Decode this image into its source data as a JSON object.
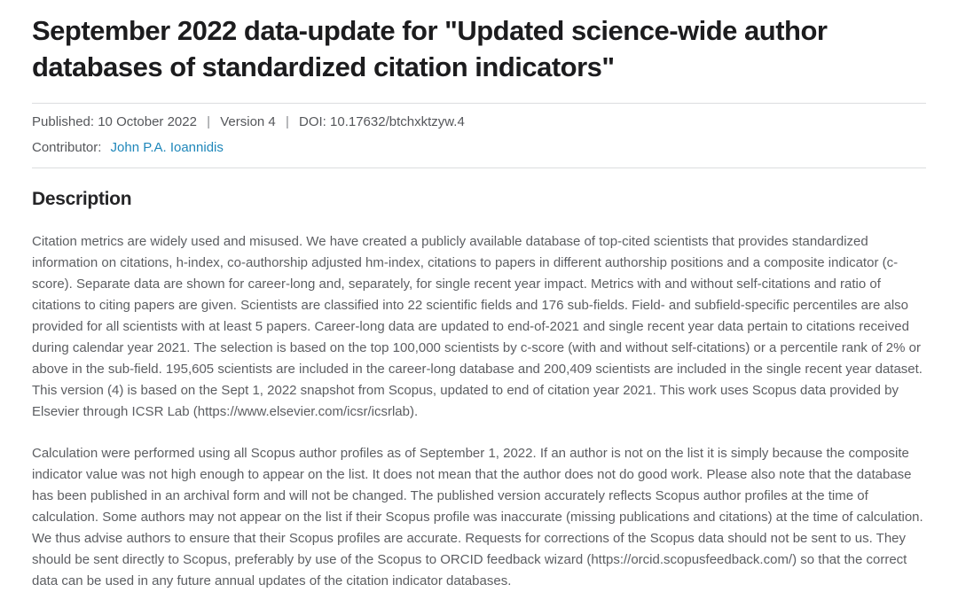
{
  "page": {
    "title": "September 2022 data-update for \"Updated science-wide author databases of standardized citation indicators\"",
    "meta": {
      "published": "Published: 10 October 2022",
      "version": "Version 4",
      "doi": "DOI: 10.17632/btchxktzyw.4",
      "separator": "|",
      "contributor_label": "Contributor:",
      "contributor_name": "John P.A. Ioannidis"
    },
    "description": {
      "heading": "Description",
      "paragraphs": [
        "Citation metrics are widely used and misused. We have created a publicly available database of top-cited scientists that provides standardized information on citations, h-index, co-authorship adjusted hm-index, citations to papers in different authorship positions and a composite indicator (c-score). Separate data are shown for career-long and, separately, for single recent year impact. Metrics with and without self-citations and ratio of citations to citing papers are given. Scientists are classified into 22 scientific fields and 176 sub-fields. Field- and subfield-specific percentiles are also provided for all scientists with at least 5 papers. Career-long data are updated to end-of-2021 and single recent year data pertain to citations received during calendar year 2021. The selection is based on the top 100,000 scientists by c-score (with and without self-citations) or a percentile rank of 2% or above in the sub-field. 195,605 scientists are included in the career-long database and 200,409 scientists are included in the single recent year dataset. This version (4) is based on the Sept 1, 2022 snapshot from Scopus, updated to end of citation year 2021. This work uses Scopus data provided by Elsevier through ICSR Lab (https://www.elsevier.com/icsr/icsrlab).",
        "Calculation were performed using all Scopus author profiles as of September 1, 2022. If an author is not on the list it is simply because the composite indicator value was not high enough to appear on the list. It does not mean that the author does not do good work.  Please also note that the database has been published in an archival form and will not be changed. The published version accurately reflects Scopus author profiles at the time of calculation.  Some authors may not appear on the list if their Scopus profile was inaccurate (missing publications and citations) at the time of calculation. We thus advise authors to ensure that their Scopus profiles are accurate. Requests for corrections of the Scopus data should not be sent to us. They should be sent directly to Scopus, preferably by use of the Scopus to ORCID feedback wizard (https://orcid.scopusfeedback.com/) so that the correct data can be used in any future annual updates of the citation indicator databases."
      ]
    },
    "colors": {
      "link": "#1f87ba",
      "title_text": "#1c1c1e",
      "body_text": "#5c5e62",
      "divider": "#dcdddf"
    }
  }
}
